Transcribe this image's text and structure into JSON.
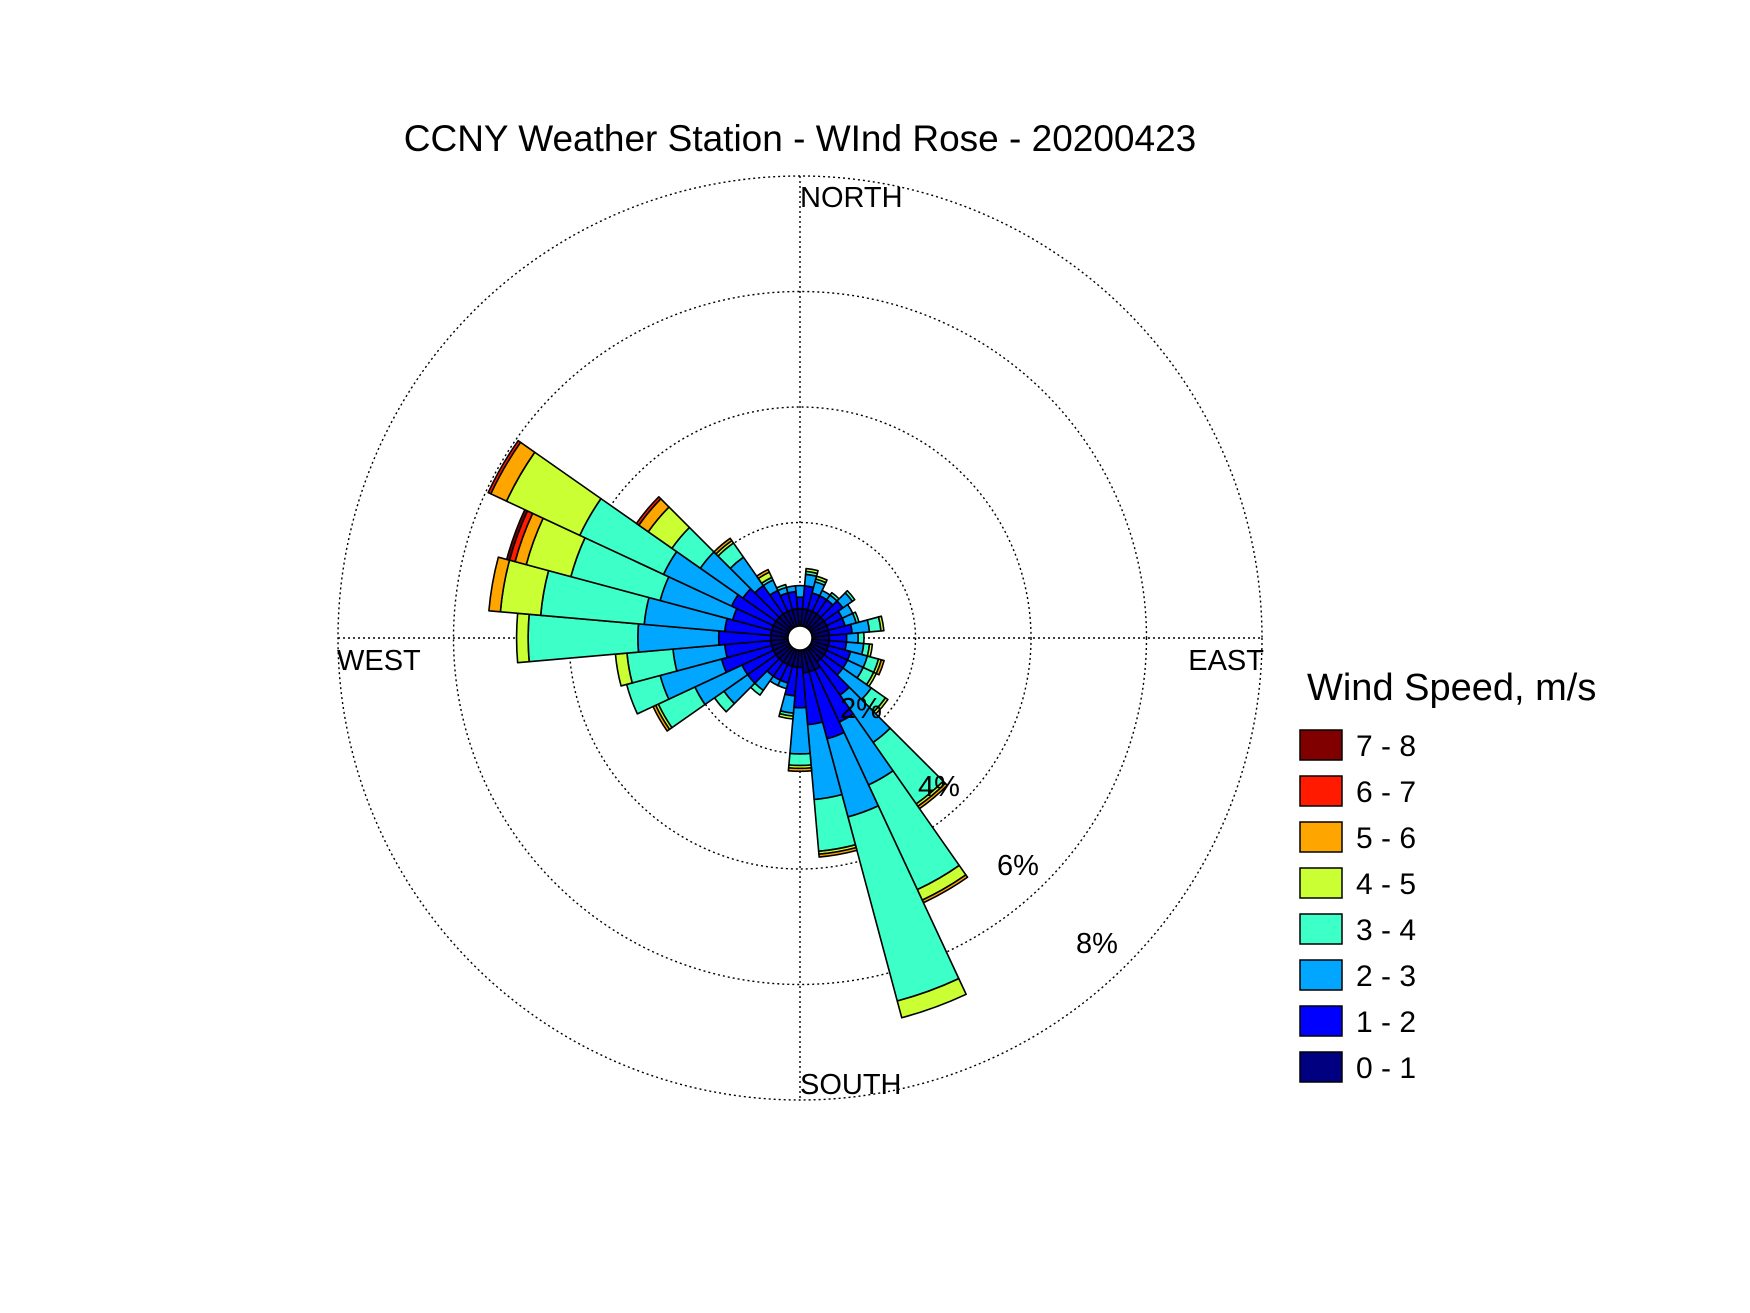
{
  "chart_data": {
    "type": "polar_stacked_bar",
    "title": "CCNY Weather Station - WInd Rose - 20200423",
    "direction_labels": {
      "north": "NORTH",
      "east": "EAST",
      "south": "SOUTH",
      "west": "WEST"
    },
    "radial_ticks": [
      2,
      4,
      6,
      8
    ],
    "radial_tick_labels": [
      "2%",
      "4%",
      "6%",
      "8%"
    ],
    "rmax": 8,
    "sector_width_deg": 10,
    "speed_bins": [
      "0 - 1",
      "1 - 2",
      "2 - 3",
      "3 - 4",
      "4 - 5",
      "5 - 6",
      "6 - 7",
      "7 - 8"
    ],
    "bin_colors": [
      "#000080",
      "#0000FF",
      "#00A6FF",
      "#3DFFC8",
      "#CAFF33",
      "#FFA500",
      "#FF1A00",
      "#800000"
    ],
    "legend": {
      "title": "Wind Speed, m/s",
      "order": "descending"
    },
    "sectors": [
      {
        "dir": 0,
        "values": [
          0.3,
          0.2,
          0.2,
          0,
          0,
          0,
          0,
          0
        ]
      },
      {
        "dir": 10,
        "values": [
          0.3,
          0.4,
          0.2,
          0.05,
          0.05,
          0,
          0,
          0
        ]
      },
      {
        "dir": 20,
        "values": [
          0.3,
          0.3,
          0.2,
          0.05,
          0.05,
          0,
          0,
          0
        ]
      },
      {
        "dir": 30,
        "values": [
          0.3,
          0.3,
          0.1,
          0,
          0,
          0,
          0,
          0
        ]
      },
      {
        "dir": 40,
        "values": [
          0.3,
          0.3,
          0.1,
          0.05,
          0,
          0,
          0,
          0
        ]
      },
      {
        "dir": 50,
        "values": [
          0.3,
          0.4,
          0.2,
          0.05,
          0,
          0,
          0,
          0
        ]
      },
      {
        "dir": 60,
        "values": [
          0.3,
          0.3,
          0.2,
          0,
          0,
          0,
          0,
          0
        ]
      },
      {
        "dir": 70,
        "values": [
          0.3,
          0.3,
          0.2,
          0.05,
          0,
          0,
          0,
          0
        ]
      },
      {
        "dir": 80,
        "values": [
          0.3,
          0.4,
          0.3,
          0.2,
          0.05,
          0,
          0,
          0
        ]
      },
      {
        "dir": 90,
        "values": [
          0.3,
          0.3,
          0.2,
          0.1,
          0,
          0,
          0,
          0
        ]
      },
      {
        "dir": 100,
        "values": [
          0.3,
          0.3,
          0.3,
          0.1,
          0.05,
          0,
          0,
          0
        ]
      },
      {
        "dir": 110,
        "values": [
          0.3,
          0.4,
          0.3,
          0.2,
          0.05,
          0.05,
          0,
          0
        ]
      },
      {
        "dir": 120,
        "values": [
          0.3,
          0.4,
          0.3,
          0.2,
          0.05,
          0,
          0,
          0
        ]
      },
      {
        "dir": 130,
        "values": [
          0.3,
          0.4,
          0.6,
          0.3,
          0.05,
          0,
          0,
          0
        ]
      },
      {
        "dir": 140,
        "values": [
          0.3,
          0.7,
          1.0,
          1.3,
          0.05,
          0.05,
          0,
          0
        ]
      },
      {
        "dir": 150,
        "values": [
          0.4,
          1.0,
          1.2,
          2.0,
          0.2,
          0.05,
          0,
          0
        ]
      },
      {
        "dir": 160,
        "values": [
          0.4,
          1.2,
          1.4,
          3.3,
          0.3,
          0,
          0,
          0
        ]
      },
      {
        "dir": 170,
        "values": [
          0.4,
          0.9,
          1.3,
          0.9,
          0.05,
          0.05,
          0,
          0
        ]
      },
      {
        "dir": 180,
        "values": [
          0.3,
          0.7,
          0.8,
          0.2,
          0.05,
          0.05,
          0,
          0
        ]
      },
      {
        "dir": 190,
        "values": [
          0.3,
          0.5,
          0.3,
          0.05,
          0.05,
          0,
          0,
          0
        ]
      },
      {
        "dir": 200,
        "values": [
          0.3,
          0.3,
          0.1,
          0,
          0,
          0,
          0,
          0
        ]
      },
      {
        "dir": 210,
        "values": [
          0.3,
          0.3,
          0.1,
          0,
          0,
          0,
          0,
          0
        ]
      },
      {
        "dir": 220,
        "values": [
          0.3,
          0.3,
          0.3,
          0.1,
          0,
          0,
          0,
          0
        ]
      },
      {
        "dir": 230,
        "values": [
          0.3,
          0.6,
          0.5,
          0.2,
          0,
          0,
          0,
          0
        ]
      },
      {
        "dir": 240,
        "values": [
          0.3,
          0.6,
          0.9,
          0.7,
          0.05,
          0.05,
          0,
          0
        ]
      },
      {
        "dir": 250,
        "values": [
          0.3,
          0.9,
          1.1,
          0.6,
          0,
          0,
          0,
          0
        ]
      },
      {
        "dir": 260,
        "values": [
          0.3,
          0.8,
          0.9,
          0.8,
          0.2,
          0,
          0,
          0
        ]
      },
      {
        "dir": 270,
        "values": [
          0.3,
          0.9,
          1.4,
          1.9,
          0.2,
          0,
          0,
          0
        ]
      },
      {
        "dir": 280,
        "values": [
          0.3,
          0.8,
          1.4,
          1.8,
          0.7,
          0.2,
          0,
          0
        ]
      },
      {
        "dir": 290,
        "values": [
          0.3,
          0.7,
          1.3,
          1.6,
          0.8,
          0.2,
          0.1,
          0.05
        ]
      },
      {
        "dir": 300,
        "values": [
          0.3,
          0.8,
          1.3,
          1.6,
          1.4,
          0.3,
          0.05,
          0
        ]
      },
      {
        "dir": 310,
        "values": [
          0.3,
          0.7,
          0.9,
          0.6,
          0.5,
          0.2,
          0.05,
          0
        ]
      },
      {
        "dir": 320,
        "values": [
          0.3,
          0.6,
          0.6,
          0.3,
          0.05,
          0.05,
          0,
          0
        ]
      },
      {
        "dir": 330,
        "values": [
          0.3,
          0.4,
          0.2,
          0.05,
          0.1,
          0.05,
          0,
          0
        ]
      },
      {
        "dir": 340,
        "values": [
          0.3,
          0.3,
          0.1,
          0.05,
          0,
          0,
          0,
          0
        ]
      },
      {
        "dir": 350,
        "values": [
          0.3,
          0.3,
          0.1,
          0,
          0,
          0,
          0,
          0
        ]
      }
    ]
  }
}
